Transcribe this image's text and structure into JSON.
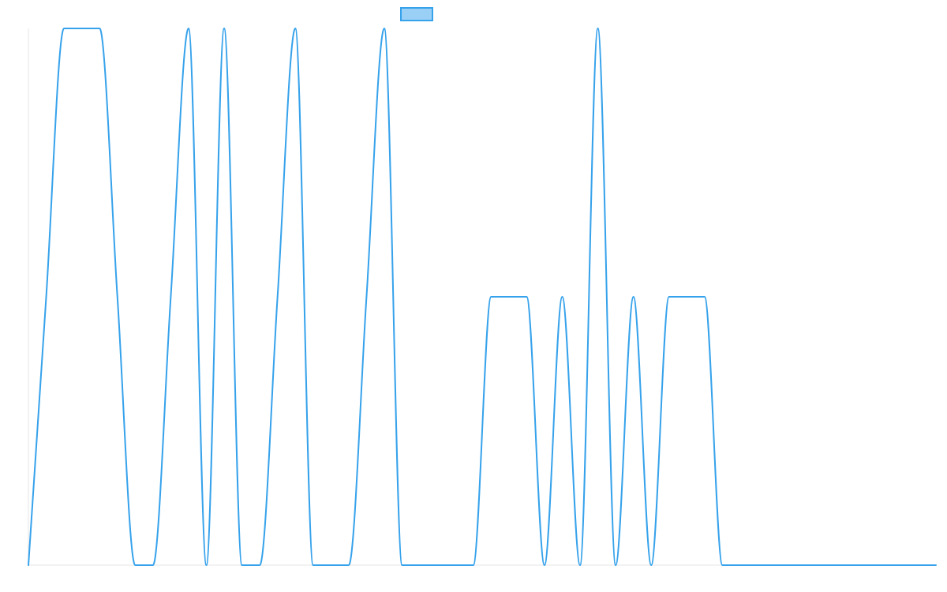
{
  "chart_data": {
    "type": "line",
    "title": "",
    "xlabel": "",
    "ylabel": "",
    "ylim": [
      0,
      1
    ],
    "grid": false,
    "legend": {
      "placement": "top-center",
      "entries": [
        ""
      ]
    },
    "x": [
      0,
      1,
      2,
      3,
      4,
      5,
      6,
      7,
      8,
      9,
      10,
      11,
      12,
      13,
      14,
      15,
      16,
      17,
      18,
      19,
      20,
      21,
      22,
      23,
      24,
      25,
      26,
      27,
      28,
      29,
      30,
      31,
      32,
      33,
      34,
      35,
      36,
      37,
      38,
      39,
      40,
      41,
      42,
      43,
      44,
      45,
      46,
      47,
      48,
      49,
      50,
      51
    ],
    "series": [
      {
        "name": "",
        "color": "#36a2eb",
        "fill": "#9ad0f5",
        "values": [
          0,
          0.5,
          1,
          1,
          1,
          0.5,
          0,
          0,
          0.5,
          1,
          0,
          1,
          0,
          0,
          0.5,
          1,
          0,
          0,
          0,
          0.5,
          1,
          0,
          0,
          0,
          0,
          0,
          0.5,
          0.5,
          0.5,
          0,
          0.5,
          0,
          1,
          0,
          0.5,
          0,
          0.5,
          0.5,
          0.5,
          0,
          0,
          0,
          0,
          0,
          0,
          0,
          0,
          0,
          0,
          0,
          0,
          0
        ]
      }
    ]
  }
}
